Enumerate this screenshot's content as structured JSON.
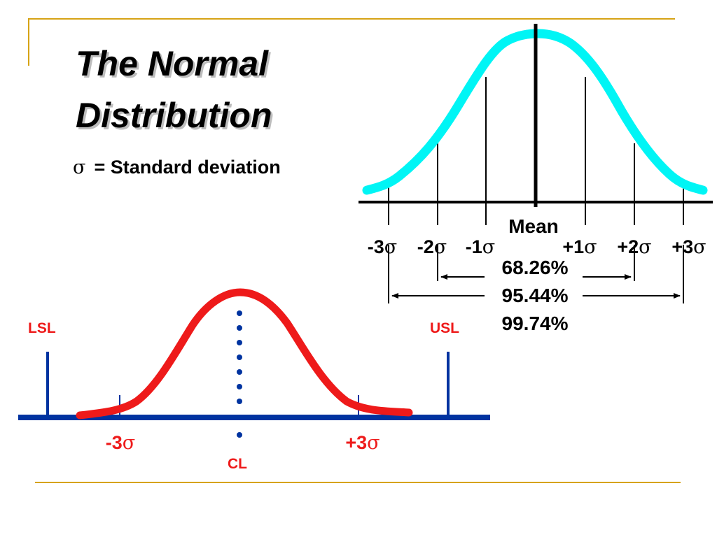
{
  "slide": {
    "title_line1": "The Normal",
    "title_line2": "Distribution",
    "sigma_symbol": "σ",
    "sigma_definition": "= Standard deviation"
  },
  "top_diagram": {
    "mean_label": "Mean",
    "sigma_ticks": [
      {
        "prefix": "-3",
        "sym": "σ"
      },
      {
        "prefix": "-2",
        "sym": "σ"
      },
      {
        "prefix": "-1",
        "sym": "σ"
      },
      {
        "prefix": "+1",
        "sym": "σ"
      },
      {
        "prefix": "+2",
        "sym": "σ"
      },
      {
        "prefix": "+3",
        "sym": "σ"
      }
    ],
    "coverage": [
      "68.26%",
      "95.44%",
      "99.74%"
    ],
    "curve_color": "#00f5f5"
  },
  "control_chart": {
    "lsl_label": "LSL",
    "usl_label": "USL",
    "minus3_label": "-3",
    "plus3_label": "+3",
    "sigma_symbol": "σ",
    "cl_label": "CL",
    "curve_color": "#ee1a1a",
    "axis_color": "#0033a0",
    "label_color": "#ee1a1a"
  },
  "colors": {
    "accent_line": "#d6a316"
  }
}
